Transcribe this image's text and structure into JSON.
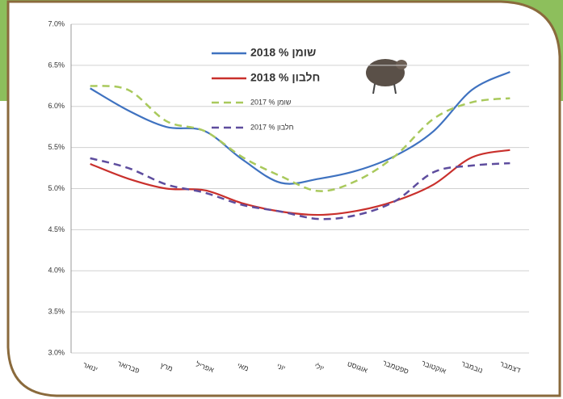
{
  "chart_data": {
    "type": "line",
    "categories": [
      "ינואר",
      "פברואר",
      "מרץ",
      "אפריל",
      "מאי",
      "יוני",
      "יולי",
      "אוגוסט",
      "ספטמבר",
      "אוקטובר",
      "נובמבר",
      "דצמבר"
    ],
    "series": [
      {
        "name": "שומן % 2018",
        "color": "#3f72c0",
        "dash": false,
        "values": [
          6.22,
          5.95,
          5.75,
          5.7,
          5.35,
          5.07,
          5.12,
          5.22,
          5.4,
          5.7,
          6.2,
          6.42
        ]
      },
      {
        "name": "חלבון % 2018",
        "color": "#c9302c",
        "dash": false,
        "values": [
          5.3,
          5.12,
          5.0,
          4.98,
          4.82,
          4.72,
          4.68,
          4.73,
          4.85,
          5.05,
          5.38,
          5.47
        ]
      },
      {
        "name": "שומן % 2017",
        "color": "#a9c95c",
        "dash": true,
        "values": [
          6.25,
          6.2,
          5.82,
          5.7,
          5.38,
          5.15,
          4.97,
          5.1,
          5.4,
          5.85,
          6.05,
          6.1
        ]
      },
      {
        "name": "חלבון % 2017",
        "color": "#5e4d9e",
        "dash": true,
        "values": [
          5.37,
          5.25,
          5.05,
          4.95,
          4.8,
          4.72,
          4.63,
          4.68,
          4.85,
          5.2,
          5.28,
          5.31
        ]
      }
    ],
    "ylim": [
      3.0,
      7.0
    ],
    "yticks": [
      {
        "value": 3.0,
        "label": "3.0%"
      },
      {
        "value": 3.5,
        "label": "3.5%"
      },
      {
        "value": 4.0,
        "label": "4.0%"
      },
      {
        "value": 4.5,
        "label": "4.5%"
      },
      {
        "value": 5.0,
        "label": "5.0%"
      },
      {
        "value": 5.5,
        "label": "5.5%"
      },
      {
        "value": 6.0,
        "label": "6.0%"
      },
      {
        "value": 6.5,
        "label": "6.5%"
      },
      {
        "value": 7.0,
        "label": "7.0%"
      }
    ],
    "grid": true
  }
}
